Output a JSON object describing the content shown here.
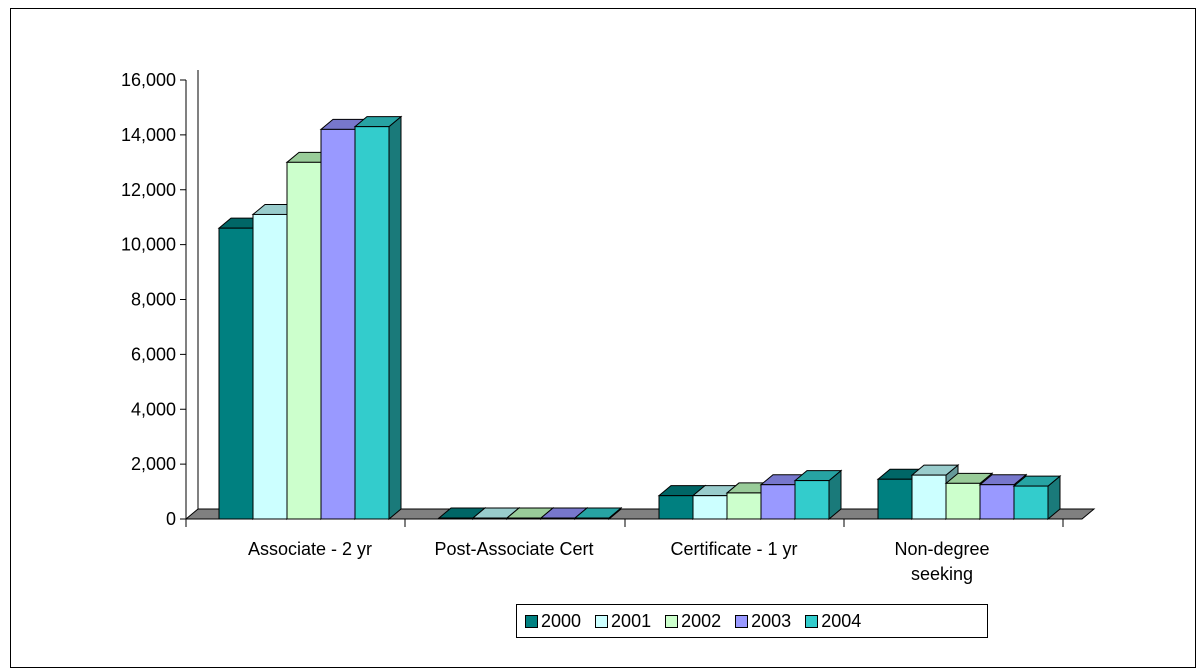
{
  "chart_data": {
    "type": "bar",
    "categories": [
      "Associate - 2 yr",
      "Post-Associate Cert",
      "Certificate - 1 yr",
      "Non-degree\nseeking"
    ],
    "series": [
      {
        "name": "2000",
        "values": [
          10600,
          30,
          850,
          1450
        ],
        "color": "#008080",
        "top": "#006666",
        "side": "#004d4d"
      },
      {
        "name": "2001",
        "values": [
          11100,
          30,
          850,
          1600
        ],
        "color": "#ccffff",
        "top": "#99cccc",
        "side": "#669999"
      },
      {
        "name": "2002",
        "values": [
          13000,
          30,
          950,
          1300
        ],
        "color": "#ccffcc",
        "top": "#99cc99",
        "side": "#669966"
      },
      {
        "name": "2003",
        "values": [
          14200,
          30,
          1250,
          1250
        ],
        "color": "#9999ff",
        "top": "#7777cc",
        "side": "#555599"
      },
      {
        "name": "2004",
        "values": [
          14300,
          30,
          1400,
          1200
        ],
        "color": "#33cccc",
        "top": "#27a3a3",
        "side": "#1a7a7a"
      }
    ],
    "ylim": [
      0,
      16000
    ],
    "yticks": [
      "0",
      "2,000",
      "4,000",
      "6,000",
      "8,000",
      "10,000",
      "12,000",
      "14,000",
      "16,000"
    ],
    "ytick_values": [
      0,
      2000,
      4000,
      6000,
      8000,
      10000,
      12000,
      14000,
      16000
    ],
    "grid": false,
    "legend_position": "bottom"
  }
}
